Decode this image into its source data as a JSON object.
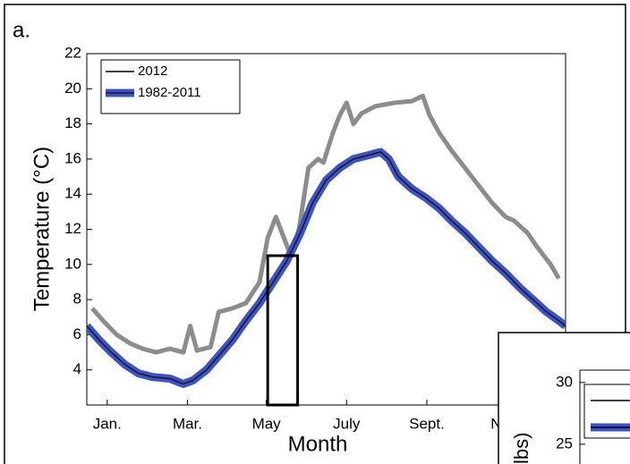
{
  "chart_data": [
    {
      "type": "line",
      "panel_label": "a.",
      "xlabel": "Month",
      "ylabel": "Temperature (°C)",
      "xlim": [
        0,
        352
      ],
      "xticks": [
        {
          "value": 15,
          "label": "Jan."
        },
        {
          "value": 74,
          "label": "Mar."
        },
        {
          "value": 132,
          "label": "May"
        },
        {
          "value": 191,
          "label": "July"
        },
        {
          "value": 250,
          "label": "Sept."
        },
        {
          "value": 308,
          "label": "Nov."
        }
      ],
      "ylim": [
        2,
        22
      ],
      "yticks": [
        4,
        6,
        8,
        10,
        12,
        14,
        16,
        18,
        20,
        22
      ],
      "legend": "upper left",
      "highlight_box": {
        "x": [
          133,
          155
        ],
        "ytop": 10.5
      },
      "series": [
        {
          "name": "2012",
          "color": "#8c8c8c",
          "legend_color": "#000000",
          "x": [
            4,
            12,
            22,
            32,
            41,
            51,
            61,
            71,
            76,
            81,
            91,
            97,
            107,
            117,
            127,
            133,
            139,
            145,
            150,
            156,
            163,
            170,
            174,
            181,
            186,
            191,
            196,
            202,
            212,
            226,
            239,
            247,
            252,
            259,
            268,
            278,
            288,
            298,
            308,
            314,
            324,
            331,
            341,
            347
          ],
          "values": [
            7.5,
            6.8,
            6.0,
            5.5,
            5.2,
            5.0,
            5.2,
            5.0,
            6.5,
            5.1,
            5.3,
            7.3,
            7.5,
            7.8,
            9.0,
            11.5,
            12.7,
            11.5,
            10.5,
            12.0,
            15.5,
            16.0,
            15.8,
            17.5,
            18.5,
            19.2,
            18.0,
            18.6,
            19.0,
            19.2,
            19.3,
            19.6,
            18.5,
            17.5,
            16.5,
            15.5,
            14.5,
            13.5,
            12.7,
            12.5,
            11.8,
            11.0,
            10.0,
            9.2
          ]
        },
        {
          "name": "1982-2011",
          "color": "#1a1a1a",
          "band_color": "#3d52c8",
          "x": [
            0,
            9,
            18,
            28,
            38,
            48,
            61,
            71,
            78,
            88,
            97,
            107,
            117,
            127,
            137,
            147,
            157,
            166,
            176,
            186,
            196,
            206,
            216,
            222,
            229,
            239,
            249,
            259,
            268,
            278,
            288,
            298,
            308,
            318,
            328,
            338,
            347,
            352
          ],
          "values": [
            6.5,
            5.7,
            5.0,
            4.3,
            3.8,
            3.6,
            3.5,
            3.2,
            3.4,
            4.0,
            4.8,
            5.7,
            6.8,
            7.8,
            9.0,
            10.2,
            11.8,
            13.5,
            14.8,
            15.5,
            16.0,
            16.2,
            16.4,
            16.0,
            15.0,
            14.3,
            13.8,
            13.2,
            12.5,
            11.8,
            11.0,
            10.2,
            9.5,
            8.7,
            8.0,
            7.3,
            6.8,
            6.5
          ]
        }
      ]
    },
    {
      "type": "line",
      "ylabel": "lbs)",
      "ylim": [
        23.4,
        31
      ],
      "yticks": [
        25,
        30
      ]
    }
  ]
}
